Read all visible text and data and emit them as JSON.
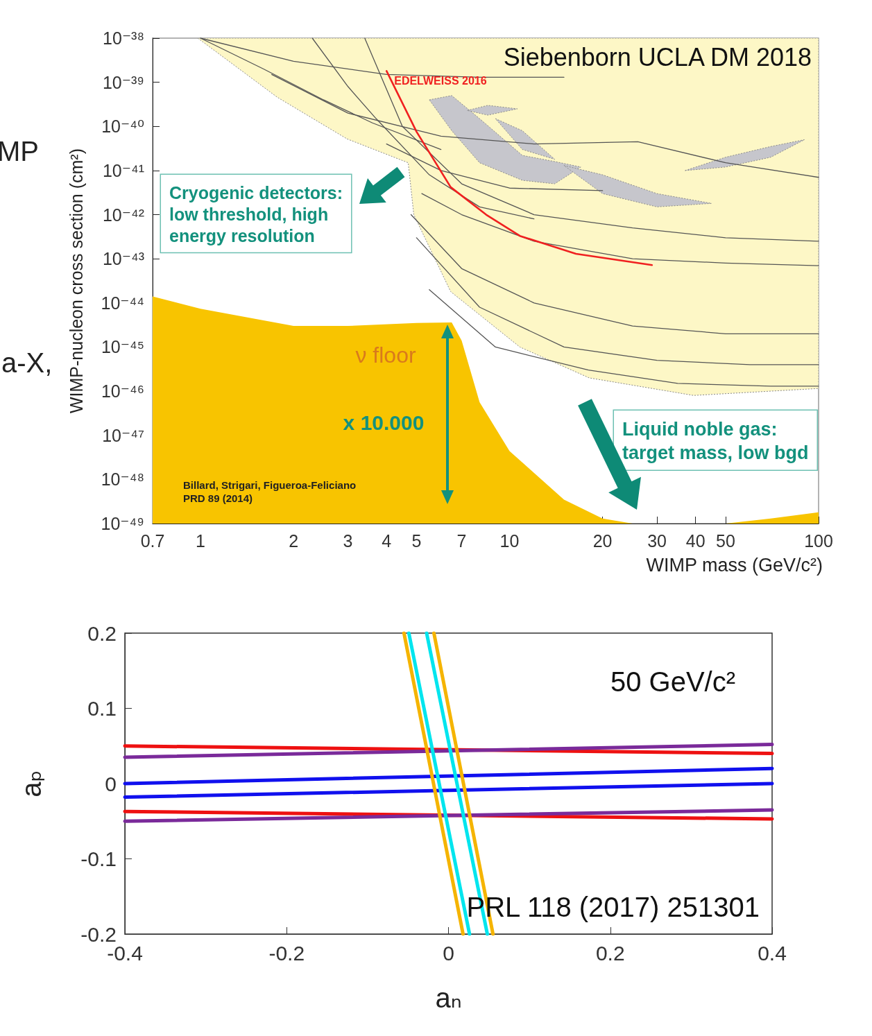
{
  "chart_data": [
    {
      "type": "line",
      "xlabel": "WIMP mass (GeV/c²)",
      "ylabel": "WIMP-nucleon cross section (cm²)",
      "log": "xy",
      "xlim": [
        0.7,
        100
      ],
      "ylim": [
        1e-49,
        1e-38
      ],
      "xticks": [
        0.7,
        1,
        2,
        3,
        4,
        5,
        7,
        10,
        20,
        30,
        40,
        50,
        100
      ],
      "yticks": [
        {
          "value": 1e-38,
          "label": "10⁻³⁸"
        },
        {
          "value": 1e-39,
          "label": "10⁻³⁹"
        },
        {
          "value": 1e-40,
          "label": "10⁻⁴⁰"
        },
        {
          "value": 1e-41,
          "label": "10⁻⁴¹"
        },
        {
          "value": 1e-42,
          "label": "10⁻⁴²"
        },
        {
          "value": 1e-43,
          "label": "10⁻⁴³"
        },
        {
          "value": 1e-44,
          "label": "10⁻⁴⁴"
        },
        {
          "value": 1e-45,
          "label": "10⁻⁴⁵"
        },
        {
          "value": 1e-46,
          "label": "10⁻⁴⁶"
        },
        {
          "value": 1e-47,
          "label": "10⁻⁴⁷"
        },
        {
          "value": 1e-48,
          "label": "10⁻⁴⁸"
        },
        {
          "value": 1e-49,
          "label": "10⁻⁴⁹"
        }
      ],
      "series": [
        {
          "type": "area",
          "color": "#fdf7c6",
          "x": [
            0.98,
            1.77,
            2.98,
            4.7,
            4.9,
            6.45,
            10.8,
            18.1,
            39.4,
            100,
            100,
            0.98
          ],
          "values": [
            1e-38,
            4.6e-40,
            5.2e-41,
            1.5e-41,
            1e-42,
            1.8e-44,
            1e-45,
            2e-46,
            8e-47,
            1.15e-46,
            1e-38,
            1e-38
          ]
        },
        {
          "type": "area",
          "color": "#c6c6cc",
          "x": [
            5.5,
            6.5,
            8,
            11,
            14,
            17,
            14,
            11,
            8,
            6.5,
            5.5
          ],
          "values": [
            4e-40,
            5e-40,
            1.5e-40,
            2.2e-41,
            1.6e-41,
            1.2e-41,
            5e-42,
            6e-42,
            1.5e-41,
            8e-41,
            4e-40
          ]
        },
        {
          "type": "area",
          "color": "#c6c6cc",
          "x": [
            7.3,
            8.5,
            10.6,
            8.5,
            7.3
          ],
          "values": [
            2.3e-40,
            3e-40,
            2.5e-40,
            1.8e-40,
            2.3e-40
          ]
        },
        {
          "type": "area",
          "color": "#c6c6cc",
          "x": [
            9,
            11,
            14,
            11,
            9
          ],
          "values": [
            1.5e-40,
            8e-41,
            1.8e-41,
            3e-41,
            1.5e-40
          ]
        },
        {
          "type": "area",
          "color": "#c6c6cc",
          "x": [
            15,
            20,
            30,
            45,
            30,
            20,
            15
          ],
          "values": [
            1.3e-41,
            8e-42,
            3e-42,
            1.8e-42,
            1.5e-42,
            3e-42,
            1.3e-41
          ]
        },
        {
          "type": "area",
          "color": "#c6c6cc",
          "x": [
            37,
            50,
            70,
            90,
            70,
            50,
            37
          ],
          "values": [
            1e-41,
            2e-41,
            3.5e-41,
            5e-41,
            2e-41,
            1.2e-41,
            1e-41
          ]
        },
        {
          "type": "area",
          "color": "#f8c400",
          "x": [
            0.7,
            1,
            2,
            3,
            5,
            6.5,
            7,
            8,
            10,
            15,
            20,
            25,
            50,
            70,
            100
          ],
          "values": [
            1.4e-44,
            7.4e-45,
            3e-45,
            3e-45,
            3.5e-45,
            3.6e-45,
            1.4e-45,
            5.6e-47,
            4.4e-48,
            3.5e-49,
            1.3e-49,
            1e-49,
            1e-49,
            1.3e-49,
            1.8e-49
          ]
        },
        {
          "color": "#555555",
          "x": [
            1.0,
            1.6,
            2.5,
            3.6,
            6
          ],
          "values": [
            1e-38,
            2e-39,
            4e-40,
            1.2e-40,
            3e-41
          ]
        },
        {
          "color": "#555555",
          "x": [
            2.3,
            3,
            3.7,
            5.5,
            8,
            12
          ],
          "values": [
            1e-38,
            8e-40,
            1.5e-40,
            8e-42,
            1.5e-42,
            8e-43
          ]
        },
        {
          "color": "#555555",
          "x": [
            1.7,
            3,
            6,
            12,
            26,
            50,
            100
          ],
          "values": [
            1.5e-39,
            2e-40,
            6e-41,
            4e-41,
            4.5e-41,
            1.5e-41,
            7e-42
          ]
        },
        {
          "color": "#555555",
          "x": [
            1.0,
            2,
            4,
            8,
            15
          ],
          "values": [
            1e-38,
            3e-39,
            1.5e-39,
            1.3e-39,
            1.3e-39
          ]
        },
        {
          "color": "#555555",
          "x": [
            3.4,
            4.5,
            7,
            12,
            25,
            50,
            100
          ],
          "values": [
            1e-38,
            1e-40,
            5e-42,
            1e-42,
            5e-43,
            3e-43,
            2.5e-43
          ]
        },
        {
          "color": "#555555",
          "x": [
            4,
            6,
            10,
            20
          ],
          "values": [
            4e-41,
            1e-41,
            4e-42,
            3.5e-42
          ]
        },
        {
          "color": "#555555",
          "x": [
            5.2,
            7,
            12,
            25,
            50,
            100
          ],
          "values": [
            3e-42,
            1e-42,
            2.5e-43,
            1e-43,
            8e-44,
            7e-44
          ]
        },
        {
          "color": "#555555",
          "x": [
            4.8,
            7,
            12,
            25,
            50,
            100
          ],
          "values": [
            1e-42,
            6e-44,
            1e-44,
            3e-45,
            2e-45,
            2e-45
          ]
        },
        {
          "color": "#555555",
          "x": [
            5,
            8,
            15,
            30,
            60,
            100
          ],
          "values": [
            3e-43,
            8e-45,
            1e-45,
            5e-46,
            4e-46,
            4e-46
          ]
        },
        {
          "color": "#555555",
          "x": [
            5.5,
            9,
            18,
            35,
            70,
            100
          ],
          "values": [
            2e-44,
            1e-45,
            3e-46,
            1.5e-46,
            1.3e-46,
            1.3e-46
          ]
        },
        {
          "name": "EDELWEISS 2016",
          "color": "#f02020",
          "x": [
            4.0,
            5.0,
            6.45,
            8.4,
            10.8,
            16.4,
            28.9
          ],
          "values": [
            1.8e-39,
            7.6e-41,
            4.2e-42,
            1e-42,
            3.3e-43,
            1.3e-43,
            7.2e-44
          ]
        }
      ],
      "annotations": [
        "Siebenborn UCLA DM 2018",
        "Cryogenic detectors:\nlow threshold, high\nenergy resolution",
        "Liquid noble gas:\ntarget mass, low bgd",
        "ν floor",
        "x 10.000",
        "Billard, Strigari, Figueroa-Feliciano\nPRD 89 (2014)",
        "MP",
        "a-X,"
      ]
    },
    {
      "type": "line",
      "xlabel": "aₙ",
      "ylabel": "aₚ",
      "xlim": [
        -0.4,
        0.4
      ],
      "ylim": [
        -0.2,
        0.2
      ],
      "xticks": [
        -0.4,
        -0.2,
        0,
        0.2,
        0.4
      ],
      "yticks": [
        -0.2,
        -0.1,
        0,
        0.1,
        0.2
      ],
      "series": [
        {
          "color": "#ee1111",
          "x": [
            -0.4,
            0.4
          ],
          "values": [
            0.05,
            0.04
          ]
        },
        {
          "color": "#ee1111",
          "x": [
            -0.4,
            0.4
          ],
          "values": [
            -0.037,
            -0.047
          ]
        },
        {
          "color": "#7a2a9a",
          "x": [
            -0.4,
            0.4
          ],
          "values": [
            0.035,
            0.052
          ]
        },
        {
          "color": "#7a2a9a",
          "x": [
            -0.4,
            0.4
          ],
          "values": [
            -0.05,
            -0.035
          ]
        },
        {
          "color": "#1010ee",
          "x": [
            -0.4,
            0.4
          ],
          "values": [
            0.0,
            0.02
          ]
        },
        {
          "color": "#1010ee",
          "x": [
            -0.4,
            0.4
          ],
          "values": [
            -0.018,
            0.0
          ]
        },
        {
          "color": "#f5b400",
          "x": [
            -0.055,
            0.018
          ],
          "values": [
            0.2,
            -0.2
          ]
        },
        {
          "color": "#00e5ee",
          "x": [
            -0.049,
            0.026
          ],
          "values": [
            0.2,
            -0.2
          ]
        },
        {
          "color": "#00e5ee",
          "x": [
            -0.027,
            0.048
          ],
          "values": [
            0.2,
            -0.2
          ]
        },
        {
          "color": "#f5b400",
          "x": [
            -0.018,
            0.055
          ],
          "values": [
            0.2,
            -0.2
          ]
        }
      ],
      "annotations": [
        "50 GeV/c²",
        "PRL 118 (2017) 251301"
      ]
    }
  ]
}
